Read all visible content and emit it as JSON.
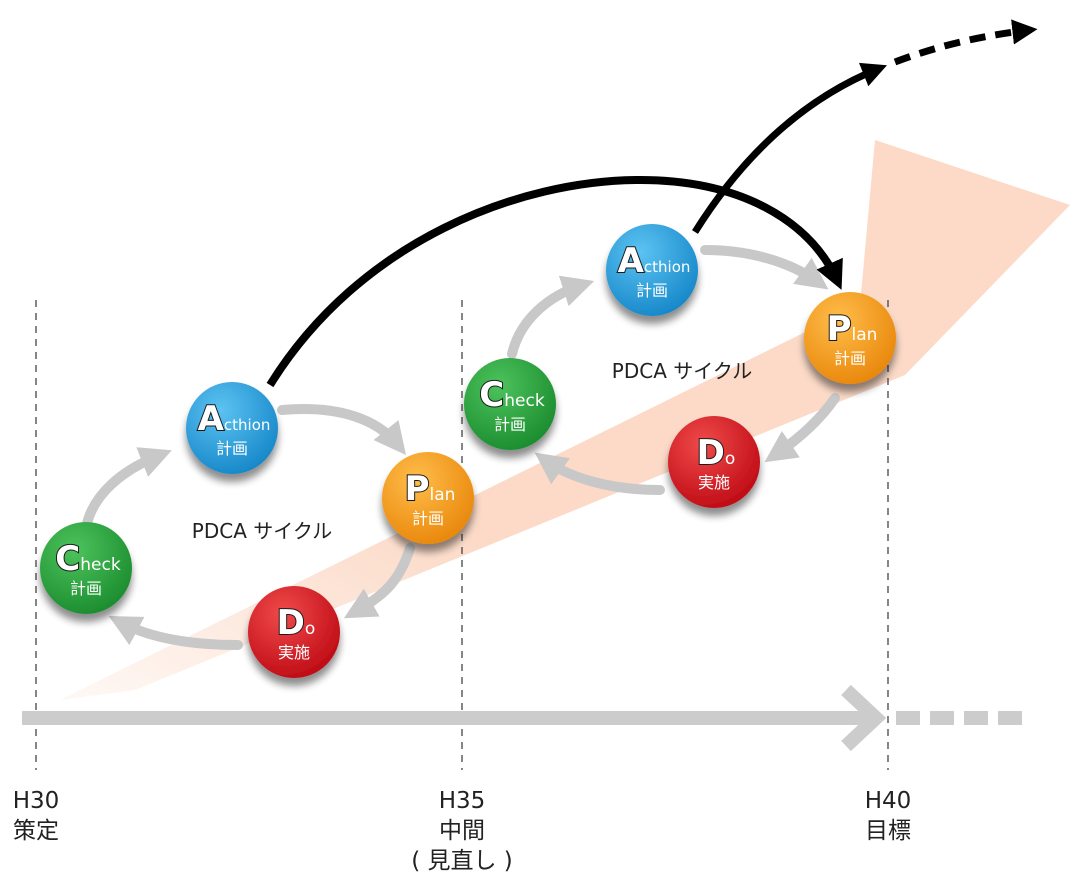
{
  "cycle_label": "PDCA サイクル",
  "colors": {
    "action": "#1ea1e0",
    "plan": "#f29a12",
    "do": "#d9111b",
    "check": "#23a33a",
    "timeline": "#cccccc",
    "band": "#fbd3bd",
    "arrow": "#000000"
  },
  "cycles": [
    {
      "nodes": {
        "action": {
          "letter": "A",
          "rest": "cthion",
          "sub": "計画"
        },
        "plan": {
          "letter": "P",
          "rest": "lan",
          "sub": "計画"
        },
        "do": {
          "letter": "D",
          "rest": "o",
          "sub": "実施"
        },
        "check": {
          "letter": "C",
          "rest": "heck",
          "sub": "計画"
        }
      }
    },
    {
      "nodes": {
        "action": {
          "letter": "A",
          "rest": "cthion",
          "sub": "計画"
        },
        "plan": {
          "letter": "P",
          "rest": "lan",
          "sub": "計画"
        },
        "do": {
          "letter": "D",
          "rest": "o",
          "sub": "実施"
        },
        "check": {
          "letter": "C",
          "rest": "heck",
          "sub": "計画"
        }
      }
    }
  ],
  "timeline": {
    "markers": [
      {
        "year": "H30",
        "label": "策定",
        "note": ""
      },
      {
        "year": "H35",
        "label": "中間",
        "note": "( 見直し )"
      },
      {
        "year": "H40",
        "label": "目標",
        "note": ""
      }
    ]
  }
}
